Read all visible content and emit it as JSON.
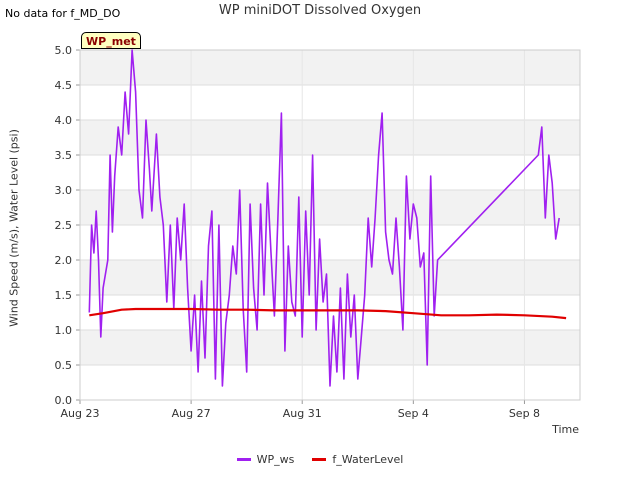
{
  "note": "No data for f_MD_DO",
  "badge": "WP_met",
  "chart_data": {
    "type": "line",
    "title": "WP miniDOT Dissolved Oxygen",
    "xlabel": "Time",
    "ylabel": "Wind Speed (m/s), Water Level (psi)",
    "xlim": [
      "2024-08-23",
      "2024-09-10"
    ],
    "ylim": [
      0,
      5.0
    ],
    "x_ticks": [
      "Aug 23",
      "Aug 27",
      "Aug 31",
      "Sep 4",
      "Sep 8"
    ],
    "y_ticks": [
      "0.0",
      "0.5",
      "1.0",
      "1.5",
      "2.0",
      "2.5",
      "3.0",
      "3.5",
      "4.0",
      "4.5",
      "5.0"
    ],
    "legend_position": "bottom",
    "grid": true,
    "series": [
      {
        "name": "WP_ws",
        "color": "#a020f0",
        "x": [
          "2024-08-23 08:00",
          "2024-08-23 10:00",
          "2024-08-23 12:00",
          "2024-08-23 14:00",
          "2024-08-23 16:00",
          "2024-08-23 18:00",
          "2024-08-23 20:00",
          "2024-08-24 00:00",
          "2024-08-24 02:00",
          "2024-08-24 04:00",
          "2024-08-24 06:00",
          "2024-08-24 09:00",
          "2024-08-24 12:00",
          "2024-08-24 15:00",
          "2024-08-24 18:00",
          "2024-08-24 21:00",
          "2024-08-25 00:00",
          "2024-08-25 03:00",
          "2024-08-25 06:00",
          "2024-08-25 09:00",
          "2024-08-25 12:00",
          "2024-08-25 14:00",
          "2024-08-25 18:00",
          "2024-08-25 21:00",
          "2024-08-26 00:00",
          "2024-08-26 03:00",
          "2024-08-26 06:00",
          "2024-08-26 09:00",
          "2024-08-26 12:00",
          "2024-08-26 15:00",
          "2024-08-26 18:00",
          "2024-08-26 21:00",
          "2024-08-27 00:00",
          "2024-08-27 03:00",
          "2024-08-27 06:00",
          "2024-08-27 09:00",
          "2024-08-27 12:00",
          "2024-08-27 15:00",
          "2024-08-27 18:00",
          "2024-08-27 21:00",
          "2024-08-28 00:00",
          "2024-08-28 03:00",
          "2024-08-28 06:00",
          "2024-08-28 09:00",
          "2024-08-28 12:00",
          "2024-08-28 15:00",
          "2024-08-28 18:00",
          "2024-08-28 21:00",
          "2024-08-29 00:00",
          "2024-08-29 03:00",
          "2024-08-29 06:00",
          "2024-08-29 09:00",
          "2024-08-29 12:00",
          "2024-08-29 15:00",
          "2024-08-29 18:00",
          "2024-08-29 21:00",
          "2024-08-30 00:00",
          "2024-08-30 03:00",
          "2024-08-30 06:00",
          "2024-08-30 09:00",
          "2024-08-30 12:00",
          "2024-08-30 15:00",
          "2024-08-30 18:00",
          "2024-08-30 21:00",
          "2024-08-31 00:00",
          "2024-08-31 03:00",
          "2024-08-31 06:00",
          "2024-08-31 09:00",
          "2024-08-31 12:00",
          "2024-08-31 15:00",
          "2024-08-31 18:00",
          "2024-08-31 21:00",
          "2024-09-01 00:00",
          "2024-09-01 03:00",
          "2024-09-01 06:00",
          "2024-09-01 09:00",
          "2024-09-01 12:00",
          "2024-09-01 15:00",
          "2024-09-01 18:00",
          "2024-09-01 21:00",
          "2024-09-02 00:00",
          "2024-09-02 03:00",
          "2024-09-02 06:00",
          "2024-09-02 09:00",
          "2024-09-02 12:00",
          "2024-09-02 15:00",
          "2024-09-02 18:00",
          "2024-09-02 21:00",
          "2024-09-03 00:00",
          "2024-09-03 03:00",
          "2024-09-03 06:00",
          "2024-09-03 09:00",
          "2024-09-03 12:00",
          "2024-09-03 15:00",
          "2024-09-03 18:00",
          "2024-09-03 21:00",
          "2024-09-04 00:00",
          "2024-09-04 03:00",
          "2024-09-04 06:00",
          "2024-09-04 09:00",
          "2024-09-04 12:00",
          "2024-09-04 15:00",
          "2024-09-04 18:00",
          "2024-09-04 21:00",
          "2024-09-08 12:00",
          "2024-09-08 15:00",
          "2024-09-08 18:00",
          "2024-09-08 21:00",
          "2024-09-09 00:00",
          "2024-09-09 03:00",
          "2024-09-09 06:00"
        ],
        "values": [
          1.25,
          2.5,
          2.1,
          2.7,
          2.0,
          0.9,
          1.6,
          2.0,
          3.5,
          2.4,
          3.2,
          3.9,
          3.5,
          4.4,
          3.8,
          5.0,
          4.4,
          3.0,
          2.6,
          4.0,
          3.3,
          2.7,
          3.8,
          2.9,
          2.5,
          1.4,
          2.5,
          1.3,
          2.6,
          2.0,
          2.8,
          1.6,
          0.7,
          1.5,
          0.4,
          1.7,
          0.6,
          2.2,
          2.7,
          0.3,
          2.5,
          0.2,
          1.1,
          1.5,
          2.2,
          1.8,
          3.0,
          1.3,
          0.4,
          2.8,
          1.6,
          1.0,
          2.8,
          1.5,
          3.1,
          2.1,
          1.2,
          2.6,
          4.1,
          0.7,
          2.2,
          1.4,
          1.2,
          2.9,
          0.9,
          2.7,
          1.5,
          3.5,
          1.0,
          2.3,
          1.4,
          1.8,
          0.2,
          1.2,
          0.4,
          1.6,
          0.3,
          1.8,
          0.9,
          1.5,
          0.3,
          0.9,
          1.5,
          2.6,
          1.9,
          2.6,
          3.5,
          4.1,
          2.4,
          2.0,
          1.8,
          2.6,
          1.9,
          1.0,
          3.2,
          2.3,
          2.8,
          2.6,
          1.9,
          2.1,
          0.5,
          3.2,
          1.2,
          2.0,
          3.5,
          3.9,
          2.6,
          3.5,
          3.1,
          2.3,
          2.6
        ]
      },
      {
        "name": "f_WaterLevel",
        "color": "#e00000",
        "x": [
          "2024-08-23 08:00",
          "2024-08-23 20:00",
          "2024-08-24 12:00",
          "2024-08-25 00:00",
          "2024-08-26 00:00",
          "2024-08-27 00:00",
          "2024-08-28 00:00",
          "2024-08-29 00:00",
          "2024-08-30 00:00",
          "2024-08-31 00:00",
          "2024-09-01 00:00",
          "2024-09-02 00:00",
          "2024-09-03 00:00",
          "2024-09-04 00:00",
          "2024-09-05 00:00",
          "2024-09-06 00:00",
          "2024-09-07 00:00",
          "2024-09-08 00:00",
          "2024-09-09 00:00",
          "2024-09-09 12:00"
        ],
        "values": [
          1.21,
          1.24,
          1.29,
          1.3,
          1.3,
          1.3,
          1.29,
          1.29,
          1.28,
          1.28,
          1.28,
          1.28,
          1.27,
          1.24,
          1.21,
          1.21,
          1.22,
          1.21,
          1.19,
          1.17
        ]
      }
    ]
  }
}
